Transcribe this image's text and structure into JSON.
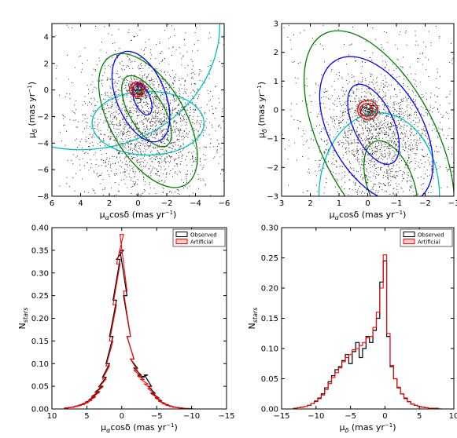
{
  "chart_data": [
    {
      "type": "scatter",
      "panel": "top-left",
      "xlabel_main": "μ",
      "xlabel_sub": "α",
      "xlabel_rest": "cosδ (mas yr",
      "xlabel_sup": "−1",
      "xlabel_end": ")",
      "ylabel_main": "μ",
      "ylabel_sub": "δ",
      "ylabel_rest": " (mas yr",
      "ylabel_sup": "−1",
      "ylabel_end": ")",
      "xlim": [
        6,
        -6
      ],
      "ylim": [
        -8,
        5
      ],
      "xticks": [
        6,
        4,
        2,
        0,
        -2,
        -4,
        -6
      ],
      "xtick_labels": [
        "6",
        "4",
        "2",
        "0",
        "−2",
        "−4",
        "−6"
      ],
      "yticks": [
        4,
        2,
        0,
        -2,
        -4,
        -6,
        -8
      ],
      "ytick_labels": [
        "4",
        "2",
        "0",
        "−2",
        "−4",
        "−6",
        "−8"
      ],
      "scatter": {
        "color": "#000000",
        "clusters": [
          {
            "center": [
              -0.6,
              -2.6
            ],
            "sd": [
              2.3,
              2.6
            ],
            "n": 1900
          },
          {
            "center": [
              0.0,
              0.0
            ],
            "sd": [
              0.35,
              0.35
            ],
            "n": 350
          },
          {
            "center": [
              0,
              -1.5
            ],
            "sd": [
              6,
              6
            ],
            "n": 600
          }
        ]
      },
      "ellipses": [
        {
          "center": [
            4.0,
            5.0
          ],
          "radii": [
            9.7,
            9.5
          ],
          "angle": 0,
          "color": "#00bfbf"
        },
        {
          "center": [
            -0.7,
            -2.5
          ],
          "radii": [
            3.9,
            2.4
          ],
          "angle": 0,
          "color": "#00bfbf"
        },
        {
          "center": [
            -0.7,
            -2.3
          ],
          "radii": [
            2.6,
            5.6
          ],
          "angle": 30,
          "color": "#007f00"
        },
        {
          "center": [
            -0.6,
            -1.6
          ],
          "radii": [
            1.2,
            3.0
          ],
          "angle": 30,
          "color": "#007f00"
        },
        {
          "center": [
            -0.2,
            -0.5
          ],
          "radii": [
            1.7,
            3.6
          ],
          "angle": 22,
          "color": "#0000ff"
        },
        {
          "center": [
            -0.3,
            -0.7
          ],
          "radii": [
            0.55,
            1.25
          ],
          "angle": 22,
          "color": "#0000ff"
        },
        {
          "center": [
            0.05,
            0.05
          ],
          "radii": [
            0.55,
            0.55
          ],
          "angle": 0,
          "color": "#ff0000"
        },
        {
          "center": [
            0.05,
            0.05
          ],
          "radii": [
            0.35,
            0.35
          ],
          "angle": 0,
          "color": "#ff0000"
        }
      ]
    },
    {
      "type": "scatter",
      "panel": "top-right",
      "xlabel_main": "μ",
      "xlabel_sub": "α",
      "xlabel_rest": "cosδ (mas yr",
      "xlabel_sup": "−1",
      "xlabel_end": ")",
      "ylabel_main": "μ",
      "ylabel_sub": "δ",
      "ylabel_rest": " (mas yr",
      "ylabel_sup": "−1",
      "ylabel_end": ")",
      "xlim": [
        3,
        -3
      ],
      "ylim": [
        -3,
        3
      ],
      "xticks": [
        3,
        2,
        1,
        0,
        -1,
        -2,
        -3
      ],
      "xtick_labels": [
        "3",
        "2",
        "1",
        "0",
        "−1",
        "−2",
        "−3"
      ],
      "yticks": [
        3,
        2,
        1,
        0,
        -1,
        -2,
        -3
      ],
      "ytick_labels": [
        "3",
        "2",
        "1",
        "0",
        "−1",
        "−2",
        "−3"
      ],
      "scatter": {
        "color": "#000000",
        "clusters": [
          {
            "center": [
              -0.4,
              -0.9
            ],
            "sd": [
              1.1,
              1.2
            ],
            "n": 1700
          },
          {
            "center": [
              0.0,
              0.0
            ],
            "sd": [
              0.18,
              0.18
            ],
            "n": 320
          },
          {
            "center": [
              0,
              0
            ],
            "sd": [
              3,
              3
            ],
            "n": 500
          }
        ]
      },
      "ellipses": [
        {
          "center": [
            -0.4,
            -3.0
          ],
          "radii": [
            2.1,
            2.9
          ],
          "angle": 0,
          "color": "#00bfbf"
        },
        {
          "center": [
            -0.4,
            -1.1
          ],
          "radii": [
            2.0,
            4.2
          ],
          "angle": 27,
          "color": "#007f00"
        },
        {
          "center": [
            -0.8,
            -2.6
          ],
          "radii": [
            0.8,
            1.6
          ],
          "angle": 20,
          "color": "#007f00"
        },
        {
          "center": [
            -0.3,
            -0.7
          ],
          "radii": [
            1.6,
            2.8
          ],
          "angle": 30,
          "color": "#0000ff"
        },
        {
          "center": [
            -0.2,
            -0.5
          ],
          "radii": [
            0.7,
            1.5
          ],
          "angle": 25,
          "color": "#0000ff"
        },
        {
          "center": [
            0.0,
            0.0
          ],
          "radii": [
            0.35,
            0.33
          ],
          "angle": 0,
          "color": "#ff0000"
        },
        {
          "center": [
            0.05,
            0.0
          ],
          "radii": [
            0.22,
            0.21
          ],
          "angle": 0,
          "color": "#ff0000"
        }
      ]
    },
    {
      "type": "line",
      "panel": "bottom-left",
      "xlabel_main": "μ",
      "xlabel_sub": "α",
      "xlabel_rest": "cosδ (mas yr",
      "xlabel_sup": "−1",
      "xlabel_end": ")",
      "ylabel_main": "N",
      "ylabel_sub": "stars",
      "xlim": [
        10,
        -15
      ],
      "ylim": [
        0,
        0.4
      ],
      "xticks": [
        10,
        5,
        0,
        -5,
        -10,
        -15
      ],
      "xtick_labels": [
        "10",
        "5",
        "0",
        "−5",
        "−10",
        "−15"
      ],
      "yticks": [
        0,
        0.05,
        0.1,
        0.15,
        0.2,
        0.25,
        0.3,
        0.35,
        0.4
      ],
      "ytick_labels": [
        "0.00",
        "0.05",
        "0.10",
        "0.15",
        "0.20",
        "0.25",
        "0.30",
        "0.35",
        "0.40"
      ],
      "legend": {
        "position": "top-right",
        "entries": [
          "Observed",
          "Artificial"
        ]
      },
      "series": [
        {
          "name": "Observed",
          "color": "#000000",
          "step": 0.5,
          "x": [
            8,
            7.5,
            7,
            6.5,
            6,
            5.5,
            5,
            4.5,
            4,
            3.5,
            3,
            2.5,
            2,
            1.5,
            1,
            0.5,
            0,
            -0.5,
            -1,
            -1.5,
            -2,
            -2.5,
            -3,
            -3.5,
            -4,
            -4.5,
            -5,
            -5.5,
            -6,
            -6.5,
            -7,
            -7.5,
            -8,
            -8.5,
            -9,
            -9.5,
            -10
          ],
          "values": [
            0.002,
            0.003,
            0.004,
            0.006,
            0.008,
            0.011,
            0.015,
            0.02,
            0.028,
            0.038,
            0.05,
            0.07,
            0.1,
            0.16,
            0.24,
            0.33,
            0.35,
            0.25,
            0.16,
            0.11,
            0.09,
            0.075,
            0.07,
            0.075,
            0.05,
            0.035,
            0.025,
            0.018,
            0.012,
            0.009,
            0.006,
            0.004,
            0.003,
            0.002,
            0.001,
            0.001,
            0
          ]
        },
        {
          "name": "Artificial",
          "color": "#ff0000",
          "step": 0.5,
          "x": [
            8,
            7.5,
            7,
            6.5,
            6,
            5.5,
            5,
            4.5,
            4,
            3.5,
            3,
            2.5,
            2,
            1.5,
            1,
            0.5,
            0,
            -0.5,
            -1,
            -1.5,
            -2,
            -2.5,
            -3,
            -3.5,
            -4,
            -4.5,
            -5,
            -5.5,
            -6,
            -6.5,
            -7,
            -7.5,
            -8,
            -8.5,
            -9,
            -9.5,
            -10
          ],
          "values": [
            0.002,
            0.003,
            0.004,
            0.006,
            0.008,
            0.01,
            0.014,
            0.019,
            0.026,
            0.036,
            0.048,
            0.066,
            0.095,
            0.15,
            0.23,
            0.32,
            0.385,
            0.26,
            0.16,
            0.11,
            0.085,
            0.072,
            0.065,
            0.055,
            0.045,
            0.033,
            0.024,
            0.017,
            0.012,
            0.008,
            0.006,
            0.004,
            0.003,
            0.002,
            0.001,
            0.001,
            0
          ]
        }
      ]
    },
    {
      "type": "line",
      "panel": "bottom-right",
      "xlabel_main": "μ",
      "xlabel_sub": "δ",
      "xlabel_rest": " (mas yr",
      "xlabel_sup": "−1",
      "xlabel_end": ")",
      "ylabel_main": "N",
      "ylabel_sub": "stars",
      "xlim": [
        -15,
        10
      ],
      "ylim": [
        0,
        0.3
      ],
      "xticks": [
        -15,
        -10,
        -5,
        0,
        5,
        10
      ],
      "xtick_labels": [
        "−15",
        "−10",
        "−5",
        "0",
        "5",
        "10"
      ],
      "yticks": [
        0,
        0.05,
        0.1,
        0.15,
        0.2,
        0.25,
        0.3
      ],
      "ytick_labels": [
        "0.00",
        "0.05",
        "0.10",
        "0.15",
        "0.20",
        "0.25",
        "0.30"
      ],
      "legend": {
        "position": "top-right",
        "entries": [
          "Observed",
          "Artificial"
        ]
      },
      "series": [
        {
          "name": "Observed",
          "color": "#000000",
          "step": 0.5,
          "x": [
            -13,
            -12.5,
            -12,
            -11.5,
            -11,
            -10.5,
            -10,
            -9.5,
            -9,
            -8.5,
            -8,
            -7.5,
            -7,
            -6.5,
            -6,
            -5.5,
            -5,
            -4.5,
            -4,
            -3.5,
            -3,
            -2.5,
            -2,
            -1.5,
            -1,
            -0.5,
            0,
            0.5,
            1,
            1.5,
            2,
            2.5,
            3,
            3.5,
            4,
            4.5,
            5,
            5.5,
            6,
            6.5,
            7,
            7.5,
            8
          ],
          "values": [
            0.001,
            0.002,
            0.003,
            0.004,
            0.006,
            0.009,
            0.013,
            0.018,
            0.025,
            0.035,
            0.045,
            0.055,
            0.065,
            0.07,
            0.08,
            0.09,
            0.075,
            0.095,
            0.11,
            0.085,
            0.1,
            0.12,
            0.11,
            0.13,
            0.15,
            0.21,
            0.245,
            0.12,
            0.07,
            0.05,
            0.035,
            0.025,
            0.018,
            0.012,
            0.008,
            0.006,
            0.004,
            0.003,
            0.002,
            0.001,
            0.001,
            0.001,
            0
          ]
        },
        {
          "name": "Artificial",
          "color": "#ff0000",
          "step": 0.5,
          "x": [
            -13,
            -12.5,
            -12,
            -11.5,
            -11,
            -10.5,
            -10,
            -9.5,
            -9,
            -8.5,
            -8,
            -7.5,
            -7,
            -6.5,
            -6,
            -5.5,
            -5,
            -4.5,
            -4,
            -3.5,
            -3,
            -2.5,
            -2,
            -1.5,
            -1,
            -0.5,
            0,
            0.5,
            1,
            1.5,
            2,
            2.5,
            3,
            3.5,
            4,
            4.5,
            5,
            5.5,
            6,
            6.5,
            7,
            7.5,
            8
          ],
          "values": [
            0.001,
            0.002,
            0.003,
            0.004,
            0.006,
            0.009,
            0.012,
            0.017,
            0.023,
            0.032,
            0.042,
            0.052,
            0.06,
            0.068,
            0.078,
            0.085,
            0.09,
            0.098,
            0.1,
            0.105,
            0.11,
            0.118,
            0.12,
            0.135,
            0.16,
            0.2,
            0.255,
            0.125,
            0.072,
            0.05,
            0.036,
            0.025,
            0.017,
            0.012,
            0.008,
            0.006,
            0.004,
            0.003,
            0.002,
            0.001,
            0.001,
            0.001,
            0
          ]
        }
      ]
    }
  ]
}
